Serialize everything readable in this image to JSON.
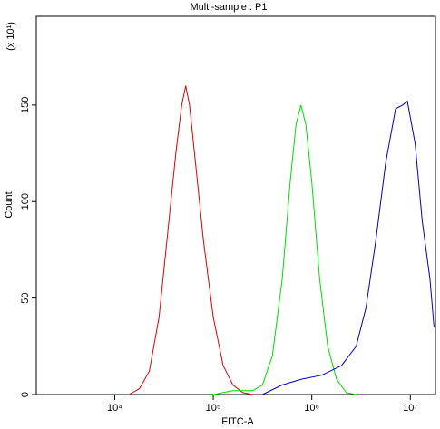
{
  "chart_data": {
    "type": "line",
    "title": "Multi-sample : P1",
    "x_label": "FITC-A",
    "y_label": "Count",
    "y_multiplier": "(x 10¹)",
    "x_scale": "log",
    "xlim": [
      1600,
      18000000
    ],
    "xticks": [
      {
        "value": 10000,
        "label": "10⁴"
      },
      {
        "value": 100000,
        "label": "10⁵"
      },
      {
        "value": 1000000,
        "label": "10⁶"
      },
      {
        "value": 10000000,
        "label": "10⁷"
      }
    ],
    "ylim": [
      0,
      196
    ],
    "yticks": [
      0,
      50,
      100,
      150
    ],
    "series": [
      {
        "name": "red",
        "color": "#e00000",
        "x": [
          14000,
          17800,
          22400,
          28200,
          35500,
          41700,
          47900,
          52500,
          57500,
          66100,
          79400,
          100000,
          126000,
          158000,
          200000,
          251000
        ],
        "values": [
          0,
          3,
          12,
          40,
          90,
          125,
          150,
          160,
          150,
          120,
          80,
          40,
          15,
          5,
          1,
          0
        ]
      },
      {
        "name": "green",
        "color": "#00dd00",
        "x": [
          100000,
          158000,
          251000,
          316000,
          398000,
          501000,
          603000,
          692000,
          776000,
          871000,
          1000000,
          1200000,
          1450000,
          1780000,
          2240000,
          2820000
        ],
        "values": [
          0,
          2,
          2,
          5,
          20,
          60,
          110,
          140,
          150,
          140,
          110,
          60,
          25,
          8,
          1,
          0
        ]
      },
      {
        "name": "blue",
        "color": "#0000c0",
        "x": [
          316000,
          501000,
          794000,
          1260000,
          2000000,
          2820000,
          3550000,
          4470000,
          5620000,
          7080000,
          8320000,
          9330000,
          11200000,
          13200000,
          15800000,
          17400000
        ],
        "values": [
          0,
          5,
          8,
          10,
          15,
          25,
          45,
          80,
          120,
          148,
          150,
          152,
          130,
          90,
          60,
          35
        ]
      }
    ]
  }
}
